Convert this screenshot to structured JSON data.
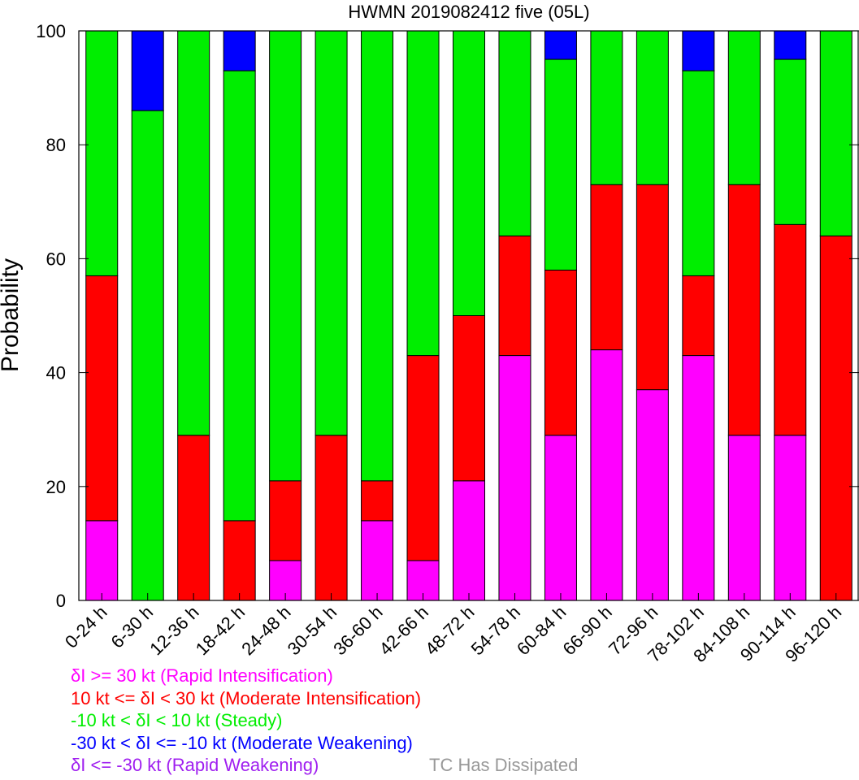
{
  "chart_data": {
    "type": "bar",
    "stacked": true,
    "title": "HWMN 2019082412 five (05L)",
    "xlabel": "",
    "ylabel": "Probability",
    "ylim": [
      0,
      100
    ],
    "yticks": [
      0,
      20,
      40,
      60,
      80,
      100
    ],
    "grid": false,
    "legend_placement": "bottom",
    "categories": [
      "0-24 h",
      "6-30 h",
      "12-36 h",
      "18-42 h",
      "24-48 h",
      "30-54 h",
      "36-60 h",
      "42-66 h",
      "48-72 h",
      "54-78 h",
      "60-84 h",
      "66-90 h",
      "72-96 h",
      "78-102 h",
      "84-108 h",
      "90-114 h",
      "96-120 h"
    ],
    "series": [
      {
        "name": "δI >= 30 kt (Rapid Intensification)",
        "color": "#ff00ff",
        "values": [
          14,
          0,
          0,
          0,
          7,
          0,
          14,
          7,
          21,
          43,
          29,
          44,
          37,
          43,
          29,
          29,
          0
        ]
      },
      {
        "name": "10 kt <= δI < 30 kt (Moderate Intensification)",
        "color": "#ff0000",
        "values": [
          43,
          0,
          29,
          14,
          14,
          29,
          7,
          36,
          29,
          21,
          29,
          29,
          36,
          14,
          44,
          37,
          64
        ]
      },
      {
        "name": "-10 kt < δI < 10 kt (Steady)",
        "color": "#00ee00",
        "values": [
          43,
          86,
          71,
          79,
          79,
          71,
          79,
          57,
          50,
          36,
          37,
          27,
          27,
          36,
          27,
          29,
          36
        ]
      },
      {
        "name": "-30 kt < δI <= -10 kt (Moderate Weakening)",
        "color": "#0000ff",
        "values": [
          0,
          14,
          0,
          7,
          0,
          0,
          0,
          0,
          0,
          0,
          5,
          0,
          0,
          7,
          0,
          5,
          0
        ]
      },
      {
        "name": "δI <= -30 kt (Rapid Weakening)",
        "color": "#a020f0",
        "values": [
          0,
          0,
          0,
          0,
          0,
          0,
          0,
          0,
          0,
          0,
          0,
          0,
          0,
          0,
          0,
          0,
          0
        ]
      }
    ]
  },
  "legend": {
    "items": [
      {
        "text": "δI >= 30 kt (Rapid Intensification)",
        "color": "#ff00ff"
      },
      {
        "text": "10 kt <= δI < 30 kt (Moderate Intensification)",
        "color": "#ff0000"
      },
      {
        "text": "-10 kt < δI < 10 kt (Steady)",
        "color": "#00ee00"
      },
      {
        "text": "-30 kt < δI <= -10 kt (Moderate Weakening)",
        "color": "#0000ff"
      },
      {
        "text": "δI <= -30 kt (Rapid Weakening)",
        "color": "#a020f0"
      }
    ],
    "dissipated": "TC Has Dissipated",
    "dissipated_color": "#999999"
  }
}
